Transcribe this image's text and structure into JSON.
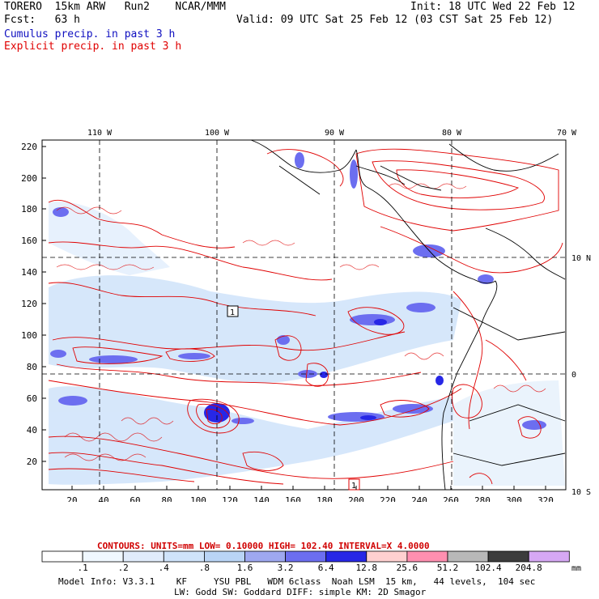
{
  "header": {
    "model": "TORERO  15km ARW   Run2    NCAR/MMM",
    "init": "Init: 18 UTC Wed 22 Feb 12",
    "fcst": "Fcst:   63 h",
    "valid": "Valid: 09 UTC Sat 25 Feb 12 (03 CST Sat 25 Feb 12)",
    "legend_blue": "Cumulus precip. in past 3 h",
    "legend_red": "Explicit precip. in past 3 h"
  },
  "map": {
    "top_lon_labels": [
      "110 W",
      "100 W",
      "90 W",
      "80 W",
      "70 W"
    ],
    "left_ticks": [
      "220",
      "200",
      "180",
      "160",
      "140",
      "120",
      "100",
      "80",
      "60",
      "40",
      "20"
    ],
    "bottom_ticks": [
      "20",
      "40",
      "60",
      "80",
      "100",
      "120",
      "140",
      "160",
      "180",
      "200",
      "220",
      "240",
      "260",
      "280",
      "300",
      "320"
    ],
    "right_lat_labels": [
      "10 N",
      "0",
      "10 S"
    ],
    "box_label_1": "1",
    "box_label_2": "1"
  },
  "contour_info": {
    "text": "CONTOURS:  UNITS=mm  LOW= 0.10000      HIGH=  102.40      INTERVAL=X  4.0000"
  },
  "colorbar": {
    "thresholds": [
      ".1",
      ".2",
      ".4",
      ".8",
      "1.6",
      "3.2",
      "6.4",
      "12.8",
      "25.6",
      "51.2",
      "102.4",
      "204.8"
    ],
    "units": "mm",
    "colors": [
      "#ffffff",
      "#f0f8ff",
      "#e1ecfb",
      "#cfe3fa",
      "#b9d4f6",
      "#9ea8f0",
      "#6c6ef0",
      "#2727e6",
      "#ffd0d0",
      "#ff8fb0",
      "#b8b8b8",
      "#3c3c3c",
      "#d6a8f4"
    ]
  },
  "footer": {
    "line1": "Model Info: V3.3.1    KF     YSU PBL   WDM 6class  Noah LSM  15 km,   44 levels,  104 sec",
    "line2": "LW: Godd SW: Goddard DIFF: simple KM: 2D Smagor"
  }
}
